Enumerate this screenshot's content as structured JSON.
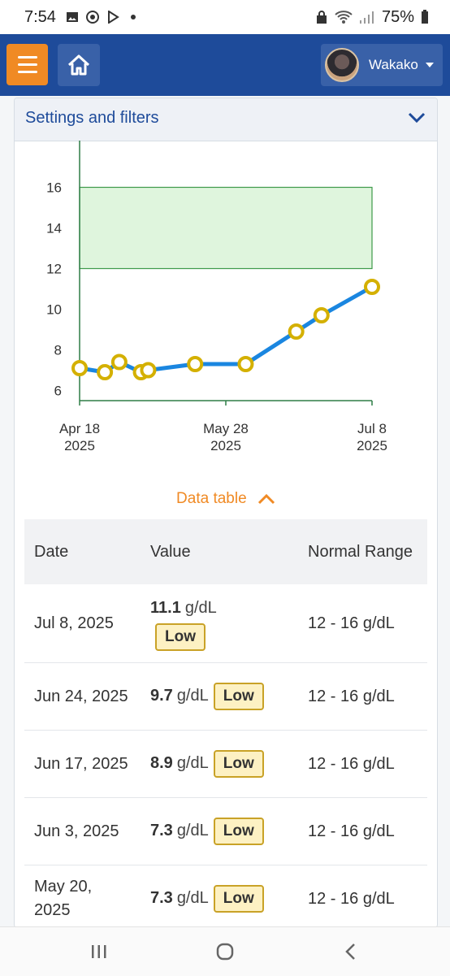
{
  "status_bar": {
    "time": "7:54",
    "battery": "75%",
    "icons": [
      "image-icon",
      "chrome-icon",
      "play-icon",
      "dot-icon",
      "lock-icon",
      "wifi-icon",
      "signal-icon",
      "battery-icon"
    ]
  },
  "header": {
    "menu_icon": "hamburger-icon",
    "home_icon": "home-icon",
    "user_name": "Wakako",
    "colors": {
      "bar": "#1e4b9a",
      "menu": "#f08a24",
      "button": "#3961a8"
    }
  },
  "filters": {
    "title": "Settings and filters",
    "icon": "chevron-down-icon"
  },
  "chart_data": {
    "type": "line",
    "title": "",
    "xlabel": "",
    "ylabel": "",
    "y_ticks": [
      "6",
      "8",
      "10",
      "12",
      "14",
      "16"
    ],
    "x_ticks": [
      {
        "line1": "Apr 18",
        "line2": "2025"
      },
      {
        "line1": "May 28",
        "line2": "2025"
      },
      {
        "line1": "Jul 8",
        "line2": "2025"
      }
    ],
    "ylim": [
      5.5,
      17.5
    ],
    "xlim": [
      "2025-04-18",
      "2025-07-08"
    ],
    "normal_range": [
      12,
      16
    ],
    "series": [
      {
        "x": [
          "2025-04-18",
          "2025-04-25",
          "2025-04-29",
          "2025-05-05",
          "2025-05-07",
          "2025-05-20",
          "2025-06-03",
          "2025-06-17",
          "2025-06-24",
          "2025-07-08"
        ],
        "values": [
          7.1,
          6.9,
          7.4,
          6.9,
          7.0,
          7.3,
          7.3,
          8.9,
          9.7,
          11.1
        ]
      }
    ],
    "colors": {
      "line": "#1a86e0",
      "marker_fill": "#ffffff",
      "marker_stroke": "#d4b000",
      "range_fill": "#dff5dd",
      "range_stroke": "#3e9a4a",
      "axis": "#2e7d46"
    }
  },
  "data_table": {
    "toggle_label": "Data table",
    "toggle_icon": "chevron-up-icon",
    "headers": {
      "date": "Date",
      "value": "Value",
      "normal_range": "Normal Range"
    },
    "rows": [
      {
        "date": "Jul 8, 2025",
        "value": "11.1",
        "unit": "g/dL",
        "flag": "Low",
        "range": "12 - 16 g/dL"
      },
      {
        "date": "Jun 24, 2025",
        "value": "9.7",
        "unit": "g/dL",
        "flag": "Low",
        "range": "12 - 16 g/dL"
      },
      {
        "date": "Jun 17, 2025",
        "value": "8.9",
        "unit": "g/dL",
        "flag": "Low",
        "range": "12 - 16 g/dL"
      },
      {
        "date": "Jun 3, 2025",
        "value": "7.3",
        "unit": "g/dL",
        "flag": "Low",
        "range": "12 - 16 g/dL"
      },
      {
        "date": "May 20, 2025",
        "value": "7.3",
        "unit": "g/dL",
        "flag": "Low",
        "range": "12 - 16 g/dL"
      }
    ]
  },
  "nav_bar": {
    "items": [
      "recent-apps-icon",
      "home-circle-icon",
      "back-icon"
    ]
  }
}
